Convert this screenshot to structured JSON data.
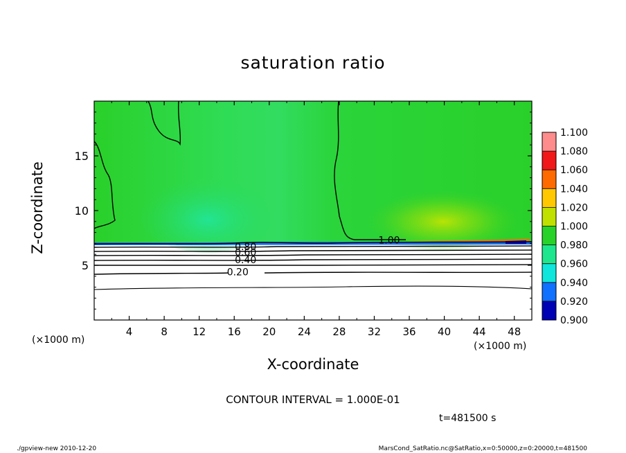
{
  "chart_data": {
    "type": "heatmap",
    "title": "saturation ratio",
    "xlabel": "X-coordinate",
    "ylabel": "Z-coordinate",
    "x_unit": "(×1000 m)",
    "x_unit_right": "(×1000 m)",
    "xlim": [
      0,
      50
    ],
    "ylim": [
      0,
      20
    ],
    "x_ticks": [
      4,
      8,
      12,
      16,
      20,
      24,
      28,
      32,
      36,
      40,
      44,
      48
    ],
    "y_ticks": [
      5,
      10,
      15
    ],
    "colorbar": {
      "levels": [
        1.1,
        1.08,
        1.06,
        1.04,
        1.02,
        1.0,
        0.98,
        0.96,
        0.94,
        0.92,
        0.9
      ],
      "labels": [
        "1.100",
        "1.080",
        "1.060",
        "1.040",
        "1.020",
        "1.000",
        "0.980",
        "0.960",
        "0.940",
        "0.920",
        "0.900"
      ],
      "colors": [
        "#ff8c8c",
        "#f01818",
        "#ff6a00",
        "#ffc800",
        "#c0e000",
        "#28d228",
        "#1ee68c",
        "#10e6dc",
        "#1070ff",
        "#0000b4",
        "#6400b4"
      ]
    },
    "contour_interval": "1.000E-01",
    "contour_labels": [
      {
        "text": "0.20",
        "x": 16.4,
        "z": 4.4
      },
      {
        "text": "0.40",
        "x": 17.3,
        "z": 5.5
      },
      {
        "text": "0.60",
        "x": 17.3,
        "z": 6.2
      },
      {
        "text": "0.80",
        "x": 17.3,
        "z": 6.7
      },
      {
        "text": "1.00",
        "x": 33.7,
        "z": 7.3
      }
    ]
  },
  "annotations": {
    "contour_interval_text": "CONTOUR INTERVAL = 1.000E-01",
    "time_text": "t=481500 s",
    "footer_left": "./gpview-new   2010-12-20",
    "footer_right": "MarsCond_SatRatio.nc@SatRatio,x=0:50000,z=0:20000,t=481500"
  }
}
